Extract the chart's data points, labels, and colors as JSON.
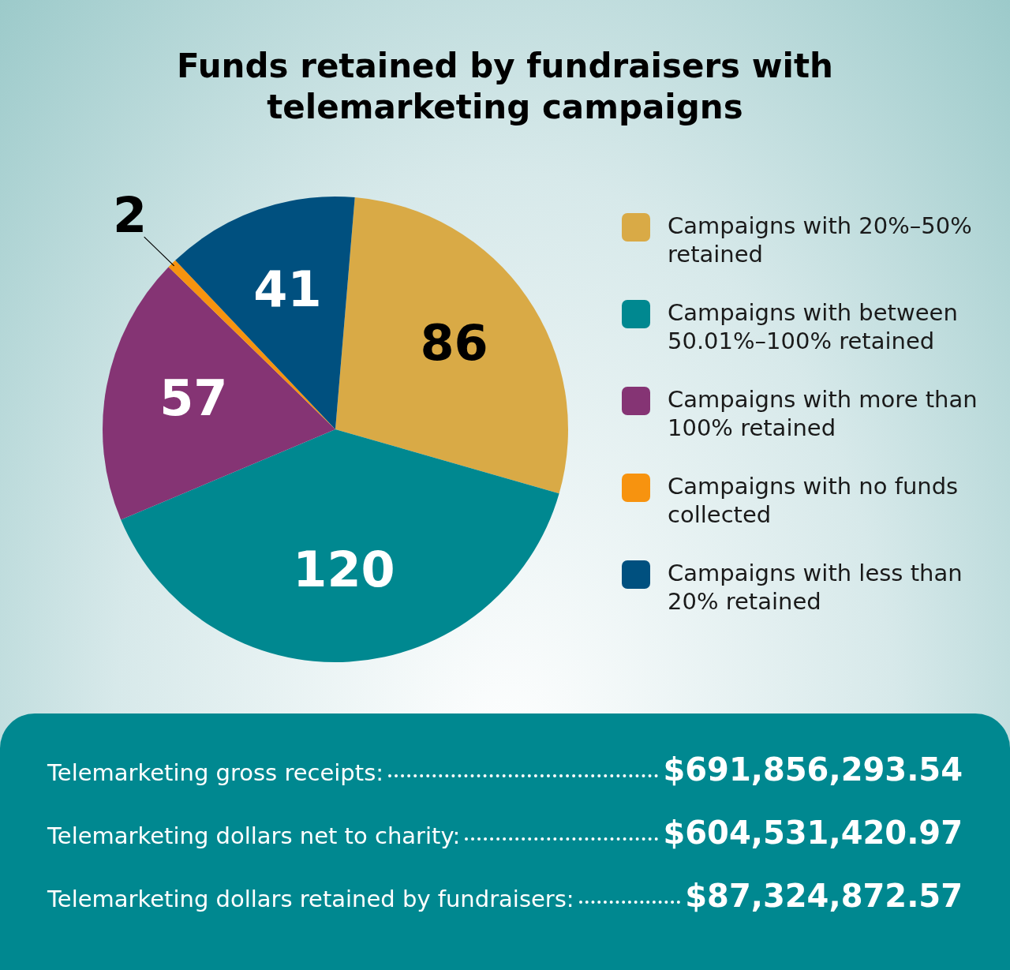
{
  "chart_data": {
    "type": "pie",
    "title": "Funds retained by fundraisers with telemarketing campaigns",
    "categories": [
      "Campaigns with 20%–50% retained",
      "Campaigns with between 50.01%–100% retained",
      "Campaigns with more than 100% retained",
      "Campaigns with no funds collected",
      "Campaigns with less than 20% retained"
    ],
    "values": [
      86,
      120,
      57,
      2,
      41
    ],
    "colors": [
      "#d9aa46",
      "#008890",
      "#853474",
      "#f7930f",
      "#00507f"
    ],
    "data_labels": true,
    "legend": "right",
    "annotations": [
      "Telemarketing gross receipts:",
      "$691,856,293.54",
      "Telemarketing dollars net to charity:",
      "$604,531,420.97",
      "Telemarketing dollars retained by fundraisers:",
      "$87,324,872.57"
    ]
  }
}
